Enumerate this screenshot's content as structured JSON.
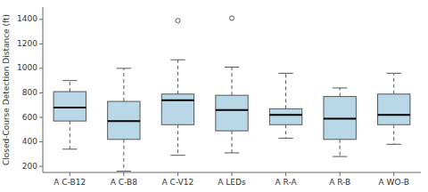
{
  "chart_data": {
    "type": "box",
    "categories": [
      "A C-B12",
      "A C-B8",
      "A C-V12",
      "A LEDs",
      "A R-A",
      "A R-B",
      "A WO-B"
    ],
    "boxes": [
      {
        "q1": 570,
        "median": 680,
        "q3": 810,
        "whisker_low": 340,
        "whisker_high": 900,
        "outliers": []
      },
      {
        "q1": 420,
        "median": 570,
        "q3": 730,
        "whisker_low": 160,
        "whisker_high": 1000,
        "outliers": []
      },
      {
        "q1": 540,
        "median": 740,
        "q3": 790,
        "whisker_low": 290,
        "whisker_high": 1070,
        "outliers": [
          1390
        ]
      },
      {
        "q1": 490,
        "median": 660,
        "q3": 780,
        "whisker_low": 310,
        "whisker_high": 1010,
        "outliers": [
          1410
        ]
      },
      {
        "q1": 540,
        "median": 620,
        "q3": 670,
        "whisker_low": 430,
        "whisker_high": 960,
        "outliers": []
      },
      {
        "q1": 420,
        "median": 590,
        "q3": 770,
        "whisker_low": 280,
        "whisker_high": 840,
        "outliers": []
      },
      {
        "q1": 540,
        "median": 620,
        "q3": 790,
        "whisker_low": 380,
        "whisker_high": 960,
        "outliers": []
      }
    ],
    "ylabel": "Closed-Course Detection Distance (ft)",
    "ylim": [
      150,
      1500
    ],
    "yticks": [
      200,
      400,
      600,
      800,
      1000,
      1200,
      1400
    ],
    "color": "#b8d8e8",
    "grid": false
  }
}
